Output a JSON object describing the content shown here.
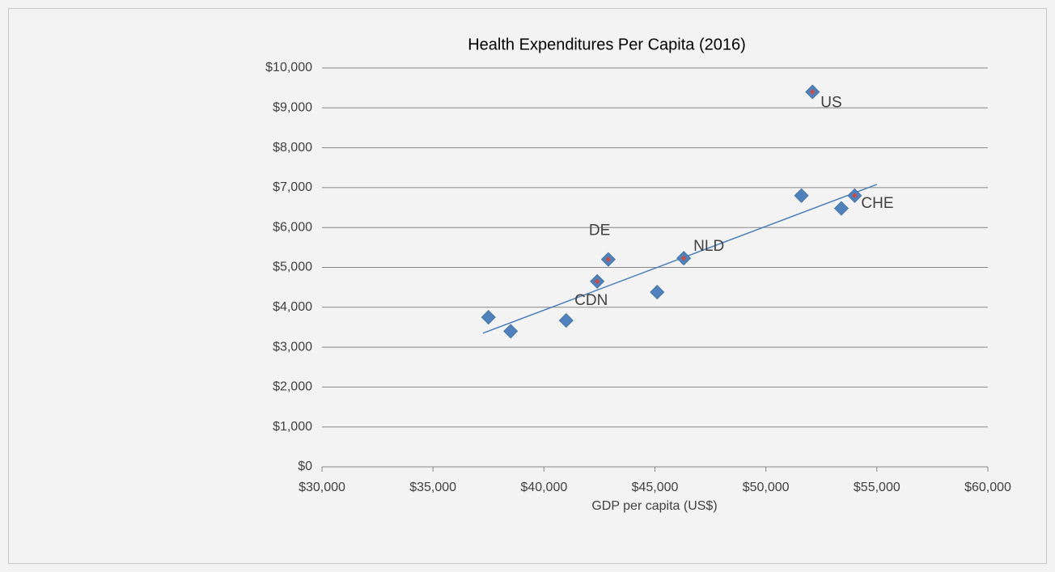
{
  "chart_data": {
    "type": "scatter",
    "title": "Health Expenditures Per Capita (2016)",
    "x_label": "GDP per capita (US$)",
    "x": [
      37500,
      38500,
      41000,
      42400,
      42900,
      45100,
      46300,
      51600,
      52100,
      53400,
      54000
    ],
    "values": [
      3750,
      3400,
      3670,
      4650,
      5200,
      4380,
      5230,
      6800,
      9400,
      6480,
      6800
    ],
    "point_labels": [
      null,
      null,
      null,
      "CDN",
      "DE",
      null,
      "NLD",
      null,
      "US",
      null,
      "CHE"
    ],
    "color": "#4f81bd",
    "highlight_color": "#c0504d",
    "trendline": {
      "x": [
        37250,
        55000
      ],
      "values": [
        3350,
        7080
      ],
      "color": "#4a7ebb"
    },
    "xlim": [
      30000,
      60000
    ],
    "xticks": [
      {
        "value": 30000,
        "label": "$30,000"
      },
      {
        "value": 35000,
        "label": "$35,000"
      },
      {
        "value": 40000,
        "label": "$40,000"
      },
      {
        "value": 45000,
        "label": "$45,000"
      },
      {
        "value": 50000,
        "label": "$50,000"
      },
      {
        "value": 55000,
        "label": "$55,000"
      },
      {
        "value": 60000,
        "label": "$60,000"
      }
    ],
    "ylim": [
      0,
      10000
    ],
    "yticks": [
      {
        "value": 0,
        "label": "$0"
      },
      {
        "value": 1000,
        "label": "$1,000"
      },
      {
        "value": 2000,
        "label": "$2,000"
      },
      {
        "value": 3000,
        "label": "$3,000"
      },
      {
        "value": 4000,
        "label": "$4,000"
      },
      {
        "value": 5000,
        "label": "$5,000"
      },
      {
        "value": 6000,
        "label": "$6,000"
      },
      {
        "value": 7000,
        "label": "$7,000"
      },
      {
        "value": 8000,
        "label": "$8,000"
      },
      {
        "value": 9000,
        "label": "$9,000"
      },
      {
        "value": 10000,
        "label": "$10,000"
      }
    ],
    "grid": true
  }
}
